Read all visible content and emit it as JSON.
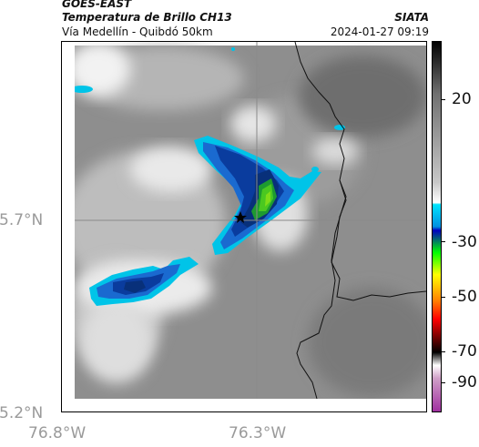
{
  "header": {
    "satellite": "GOES-EAST",
    "product": "Temperatura de Brillo CH13",
    "route": "Vía Medellín - Quibdó 50km",
    "org": "SIATA",
    "timestamp": "2024-01-27 09:19"
  },
  "map": {
    "lat_labels": [
      "5.7°N",
      "5.2°N"
    ],
    "lon_labels": [
      "76.8°W",
      "76.3°W"
    ],
    "marker_icon": "star-icon"
  },
  "colorbar": {
    "ticks": [
      "20",
      "-30",
      "-50",
      "-70",
      "-90"
    ],
    "range": [
      -95,
      35
    ],
    "colors": [
      "#b040a0",
      "#ffffff",
      "#000000",
      "#ff0000",
      "#ffff00",
      "#00ff00",
      "#0000ff",
      "#00ffff",
      "#a0a0a0",
      "#000000"
    ]
  }
}
